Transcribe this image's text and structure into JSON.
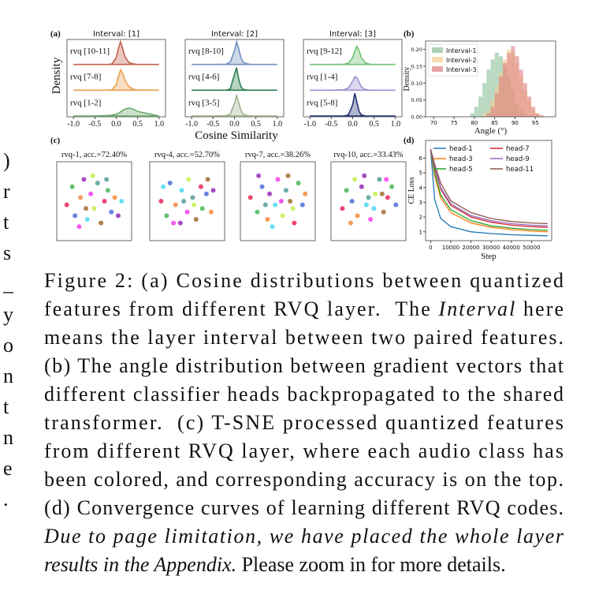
{
  "margin_fragments": [
    ")",
    "r",
    "t",
    "s",
    "_",
    "y",
    "o",
    "n",
    "t",
    "n",
    "e",
    "."
  ],
  "chart_data": [
    {
      "type": "ridgeline",
      "label": "(a)",
      "ylabel": "Density",
      "xlabel": "Cosine Similarity",
      "xlim": [
        -1.15,
        1.15
      ],
      "ylim": [
        0,
        1
      ],
      "xticks": [
        {
          "value": -1,
          "label": "-1.0"
        },
        {
          "value": -0.5,
          "label": "-0.5"
        },
        {
          "value": 0,
          "label": "0.0"
        },
        {
          "value": 0.5,
          "label": "0.5"
        },
        {
          "value": 1,
          "label": "1.0"
        }
      ],
      "x": [
        -1.0,
        -0.5,
        -0.2,
        -0.1,
        0.0,
        0.05,
        0.1,
        0.15,
        0.2,
        0.3,
        0.4,
        0.5,
        1.0
      ],
      "panels": [
        {
          "title": "Interval: [1]",
          "series": [
            {
              "name": "rvq [10-11]",
              "color": "#c0604a",
              "values": [
                0,
                0,
                0,
                0.02,
                0.3,
                0.7,
                1.0,
                0.7,
                0.35,
                0.08,
                0.02,
                0,
                0
              ]
            },
            {
              "name": "rvq [7-8]",
              "color": "#e8a050",
              "values": [
                0,
                0,
                0,
                0.02,
                0.25,
                0.6,
                0.9,
                0.75,
                0.45,
                0.15,
                0.04,
                0.01,
                0
              ]
            },
            {
              "name": "rvq [1-2]",
              "color": "#6aa86a",
              "values": [
                0,
                0,
                0.02,
                0.04,
                0.08,
                0.12,
                0.18,
                0.24,
                0.3,
                0.35,
                0.3,
                0.2,
                0
              ]
            }
          ]
        },
        {
          "title": "Interval: [2]",
          "series": [
            {
              "name": "rvq [8-10]",
              "color": "#7090c0",
              "values": [
                0,
                0,
                0.01,
                0.1,
                0.6,
                1.0,
                0.7,
                0.3,
                0.1,
                0.02,
                0,
                0,
                0
              ]
            },
            {
              "name": "rvq [4-6]",
              "color": "#2a8050",
              "values": [
                0,
                0,
                0,
                0.05,
                0.7,
                1.0,
                0.5,
                0.15,
                0.04,
                0,
                0,
                0,
                0
              ]
            },
            {
              "name": "rvq [3-5]",
              "color": "#a0b090",
              "values": [
                0,
                0,
                0.01,
                0.08,
                0.55,
                0.9,
                0.6,
                0.25,
                0.08,
                0.02,
                0,
                0,
                0
              ]
            }
          ]
        },
        {
          "title": "Interval: [3]",
          "series": [
            {
              "name": "rvq [9-12]",
              "color": "#70c070",
              "values": [
                0,
                0,
                0.01,
                0.05,
                0.3,
                0.6,
                0.8,
                0.6,
                0.3,
                0.06,
                0.01,
                0,
                0
              ]
            },
            {
              "name": "rvq [1-4]",
              "color": "#a090d0",
              "values": [
                0,
                0,
                0.02,
                0.1,
                0.4,
                0.6,
                0.55,
                0.35,
                0.15,
                0.03,
                0,
                0,
                0
              ]
            },
            {
              "name": "rvq [5-8]",
              "color": "#203070",
              "values": [
                0,
                0,
                0,
                0.05,
                0.5,
                1.0,
                0.6,
                0.2,
                0.05,
                0,
                0,
                0,
                0
              ]
            }
          ]
        }
      ]
    },
    {
      "type": "histogram",
      "label": "(b)",
      "xlabel": "Angle (°)",
      "ylabel": "Density",
      "xlim": [
        68,
        100
      ],
      "ylim": [
        0,
        0.225
      ],
      "legend": "upper left",
      "xticks": [
        70,
        75,
        80,
        85,
        90,
        95
      ],
      "yticks": [
        {
          "value": 0,
          "label": "0.00"
        },
        {
          "value": 0.05,
          "label": "0.05"
        },
        {
          "value": 0.1,
          "label": "0.10"
        },
        {
          "value": 0.15,
          "label": "0.15"
        },
        {
          "value": 0.2,
          "label": "0.20"
        }
      ],
      "bins": [
        79,
        80,
        81,
        82,
        83,
        84,
        85,
        86,
        87,
        88,
        89,
        90,
        91,
        92,
        93,
        94,
        95,
        96,
        97
      ],
      "series": [
        {
          "name": "Interval-1",
          "color": "#8bbf9a",
          "values": [
            0.01,
            0.03,
            0.06,
            0.1,
            0.14,
            0.17,
            0.19,
            0.18,
            0.15,
            0.12,
            0.08,
            0.04,
            0.02,
            0.01,
            0,
            0,
            0,
            0
          ]
        },
        {
          "name": "Interval-2",
          "color": "#f3cf8f",
          "values": [
            0,
            0,
            0,
            0.01,
            0.02,
            0.05,
            0.09,
            0.13,
            0.17,
            0.2,
            0.19,
            0.16,
            0.12,
            0.08,
            0.05,
            0.02,
            0.01,
            0
          ]
        },
        {
          "name": "Interval-3",
          "color": "#e08080",
          "values": [
            0,
            0,
            0,
            0,
            0.01,
            0.03,
            0.07,
            0.12,
            0.16,
            0.19,
            0.21,
            0.18,
            0.14,
            0.1,
            0.06,
            0.03,
            0.01,
            0.005
          ]
        }
      ]
    },
    {
      "type": "tsne",
      "label": "(c)",
      "xlim": [
        0,
        1
      ],
      "ylim": [
        0,
        1
      ],
      "colors": [
        "#e6194b",
        "#3cb44b",
        "#4363d8",
        "#f58231",
        "#911eb4",
        "#42d4f4",
        "#f032e6",
        "#bfef45",
        "#469990",
        "#9a6324"
      ],
      "panels": [
        {
          "title": "rvq-1, acc.=72.40%",
          "x": [
            0.1,
            0.18,
            0.22,
            0.3,
            0.35,
            0.4,
            0.45,
            0.5,
            0.55,
            0.6,
            0.65,
            0.7,
            0.75,
            0.8,
            0.85,
            0.9,
            0.28,
            0.48,
            0.68,
            0.38
          ],
          "y": [
            0.45,
            0.7,
            0.3,
            0.55,
            0.8,
            0.25,
            0.6,
            0.4,
            0.75,
            0.2,
            0.5,
            0.65,
            0.35,
            0.55,
            0.3,
            0.5,
            0.15,
            0.85,
            0.8,
            0.4
          ]
        },
        {
          "title": "rvq-4, acc.=52.70%",
          "x": [
            0.12,
            0.2,
            0.25,
            0.33,
            0.4,
            0.42,
            0.5,
            0.52,
            0.58,
            0.63,
            0.7,
            0.72,
            0.78,
            0.85,
            0.88,
            0.15,
            0.3,
            0.6,
            0.45,
            0.8
          ],
          "y": [
            0.5,
            0.3,
            0.75,
            0.45,
            0.2,
            0.65,
            0.35,
            0.8,
            0.55,
            0.25,
            0.7,
            0.4,
            0.6,
            0.35,
            0.65,
            0.7,
            0.2,
            0.45,
            0.5,
            0.8
          ]
        },
        {
          "title": "rvq-7, acc.=38.26%",
          "x": [
            0.1,
            0.2,
            0.27,
            0.35,
            0.38,
            0.46,
            0.5,
            0.57,
            0.62,
            0.68,
            0.74,
            0.8,
            0.86,
            0.9,
            0.22,
            0.42,
            0.55,
            0.72,
            0.32,
            0.65
          ],
          "y": [
            0.55,
            0.35,
            0.7,
            0.25,
            0.6,
            0.45,
            0.8,
            0.3,
            0.65,
            0.5,
            0.2,
            0.75,
            0.45,
            0.6,
            0.85,
            0.15,
            0.5,
            0.4,
            0.45,
            0.85
          ]
        },
        {
          "title": "rvq-10, acc.=33.43%",
          "x": [
            0.12,
            0.18,
            0.26,
            0.34,
            0.4,
            0.47,
            0.53,
            0.6,
            0.66,
            0.72,
            0.78,
            0.84,
            0.9,
            0.24,
            0.44,
            0.58,
            0.76,
            0.3,
            0.5,
            0.7
          ],
          "y": [
            0.4,
            0.65,
            0.5,
            0.3,
            0.7,
            0.45,
            0.25,
            0.6,
            0.8,
            0.35,
            0.55,
            0.7,
            0.45,
            0.2,
            0.85,
            0.4,
            0.8,
            0.8,
            0.55,
            0.6
          ]
        }
      ]
    },
    {
      "type": "line",
      "label": "(d)",
      "xlabel": "Step",
      "ylabel": "CE Loss",
      "xlim": [
        -2500,
        60000
      ],
      "ylim": [
        0.4,
        7.2
      ],
      "legend": "upper right",
      "xticks": [
        0,
        10000,
        20000,
        30000,
        40000,
        50000
      ],
      "yticks": [
        1,
        2,
        3,
        4,
        5,
        6
      ],
      "x": [
        0,
        2000,
        5000,
        10000,
        20000,
        30000,
        40000,
        50000,
        58000
      ],
      "series": [
        {
          "name": "head-1",
          "color": "#1f77b4",
          "values": [
            6.6,
            3.2,
            1.9,
            1.35,
            1.0,
            0.88,
            0.8,
            0.76,
            0.73
          ]
        },
        {
          "name": "head-3",
          "color": "#ff7f0e",
          "values": [
            6.6,
            4.8,
            3.3,
            2.3,
            1.6,
            1.3,
            1.15,
            1.05,
            1.0
          ]
        },
        {
          "name": "head-5",
          "color": "#2ca02c",
          "values": [
            6.6,
            5.0,
            3.5,
            2.5,
            1.75,
            1.4,
            1.25,
            1.15,
            1.1
          ]
        },
        {
          "name": "head-7",
          "color": "#d62728",
          "values": [
            6.6,
            5.3,
            3.9,
            2.8,
            2.0,
            1.65,
            1.45,
            1.35,
            1.3
          ]
        },
        {
          "name": "head-9",
          "color": "#9467bd",
          "values": [
            6.6,
            5.4,
            4.0,
            2.9,
            2.1,
            1.75,
            1.55,
            1.45,
            1.4
          ]
        },
        {
          "name": "head-11",
          "color": "#8c564b",
          "values": [
            6.6,
            5.6,
            4.3,
            3.1,
            2.3,
            1.9,
            1.7,
            1.6,
            1.55
          ]
        }
      ]
    }
  ],
  "caption": {
    "lines": [
      [
        {
          "text": "Figure 2: (a) Cosine distributions between quantized"
        }
      ],
      [
        {
          "text": "features from different RVQ layer.  The "
        },
        {
          "text": "Interval",
          "italic": true
        },
        {
          "text": " here"
        }
      ],
      [
        {
          "text": "means the layer interval between two paired features."
        }
      ],
      [
        {
          "text": "(b) The angle distribution between gradient vectors that"
        }
      ],
      [
        {
          "text": "different classifier heads backpropagated to the shared"
        }
      ],
      [
        {
          "text": "transformer.  (c) T-SNE processed quantized features"
        }
      ],
      [
        {
          "text": "from different RVQ layer, where each audio class has"
        }
      ],
      [
        {
          "text": "been colored, and corresponding accuracy is on the top."
        }
      ],
      [
        {
          "text": "(d) Convergence curves of learning different RVQ codes."
        }
      ],
      [
        {
          "text": "Due to page limitation, we have placed the whole layer",
          "italic": true
        }
      ],
      [
        {
          "text": "results in the Appendix.",
          "italic": true
        },
        {
          "text": " Please zoom in for more details."
        }
      ]
    ]
  }
}
